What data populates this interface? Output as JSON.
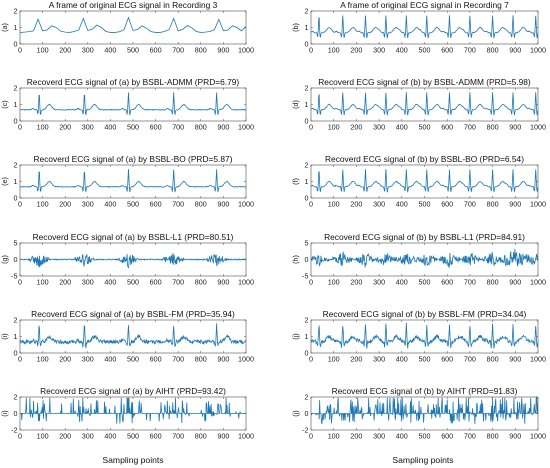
{
  "figure": {
    "xlabel": "Sampling points",
    "trace_color": "#1f77b4",
    "axis_color": "#4d4d4d"
  },
  "chart_data": [
    {
      "panel": "a",
      "type": "line",
      "title": "A frame of original ECG signal in Recording 3",
      "ylim": [
        0,
        2
      ],
      "yticks": [
        0,
        1,
        2
      ],
      "xlim": [
        0,
        1000
      ],
      "xticks": [
        0,
        100,
        200,
        300,
        400,
        500,
        600,
        700,
        800,
        900,
        1000
      ],
      "record": 3,
      "style": "ecg",
      "x": [
        0,
        20,
        40,
        60,
        80,
        100,
        120,
        140,
        160,
        180,
        200,
        220,
        240,
        260,
        280,
        300,
        320,
        340,
        360,
        380,
        400,
        420,
        440,
        460,
        480,
        500,
        520,
        540,
        560,
        580,
        600,
        620,
        640,
        660,
        680,
        700,
        720,
        740,
        760,
        780,
        800,
        820,
        840,
        860,
        880,
        900,
        920,
        940,
        960,
        980,
        1000
      ],
      "values": [
        0.7,
        0.72,
        0.75,
        0.8,
        1.5,
        0.8,
        0.85,
        1.1,
        1.0,
        0.78,
        0.72,
        0.7,
        0.76,
        0.85,
        1.55,
        0.82,
        0.9,
        1.15,
        1.0,
        0.76,
        0.7,
        0.7,
        0.74,
        0.86,
        1.6,
        0.82,
        0.88,
        1.1,
        0.95,
        0.75,
        0.7,
        0.7,
        0.76,
        0.88,
        1.55,
        0.8,
        0.88,
        1.12,
        0.98,
        0.76,
        0.7,
        0.72,
        0.76,
        0.86,
        1.5,
        0.8,
        0.85,
        1.1,
        1.0,
        0.8,
        1.05
      ]
    },
    {
      "panel": "b",
      "type": "line",
      "title": "A frame of original ECG signal in Recording 7",
      "ylim": [
        0,
        2
      ],
      "yticks": [
        0,
        1,
        2
      ],
      "xlim": [
        0,
        1000
      ],
      "xticks": [
        0,
        100,
        200,
        300,
        400,
        500,
        600,
        700,
        800,
        900,
        1000
      ],
      "record": 7,
      "style": "ecg"
    },
    {
      "panel": "c",
      "type": "line",
      "title": "Recoverd ECG signal of (a) by BSBL-ADMM (PRD=6.79)",
      "ylim": [
        0,
        2
      ],
      "yticks": [
        0,
        1,
        2
      ],
      "xlim": [
        0,
        1000
      ],
      "xticks": [
        0,
        100,
        200,
        300,
        400,
        500,
        600,
        700,
        800,
        900,
        1000
      ],
      "record": 3,
      "style": "ecg",
      "prd": 6.79
    },
    {
      "panel": "d",
      "type": "line",
      "title": "Recoverd ECG signal of (b) by BSBL-ADMM (PRD=5.98)",
      "ylim": [
        0,
        2
      ],
      "yticks": [
        0,
        1,
        2
      ],
      "xlim": [
        0,
        1000
      ],
      "xticks": [
        0,
        100,
        200,
        300,
        400,
        500,
        600,
        700,
        800,
        900,
        1000
      ],
      "record": 7,
      "style": "ecg",
      "prd": 5.98
    },
    {
      "panel": "e",
      "type": "line",
      "title": "Recoverd ECG signal of (a) by BSBL-BO (PRD=5.87)",
      "ylim": [
        0,
        2
      ],
      "yticks": [
        0,
        1,
        2
      ],
      "xlim": [
        0,
        1000
      ],
      "xticks": [
        0,
        100,
        200,
        300,
        400,
        500,
        600,
        700,
        800,
        900,
        1000
      ],
      "record": 3,
      "style": "ecg",
      "prd": 5.87
    },
    {
      "panel": "f",
      "type": "line",
      "title": "Recoverd ECG signal of (b) by BSBL-BO (PRD=6.54)",
      "ylim": [
        0,
        2
      ],
      "yticks": [
        0,
        1,
        2
      ],
      "xlim": [
        0,
        1000
      ],
      "xticks": [
        0,
        100,
        200,
        300,
        400,
        500,
        600,
        700,
        800,
        900,
        1000
      ],
      "record": 7,
      "style": "ecg",
      "prd": 6.54
    },
    {
      "panel": "g",
      "type": "line",
      "title": "Recoverd ECG signal of (a) by BSBL-L1 (PRD=80.51)",
      "ylim": [
        -5,
        5
      ],
      "yticks": [
        -5,
        0,
        5
      ],
      "xlim": [
        0,
        1000
      ],
      "xticks": [
        0,
        100,
        200,
        300,
        400,
        500,
        600,
        700,
        800,
        900,
        1000
      ],
      "record": 3,
      "style": "l1",
      "prd": 80.51
    },
    {
      "panel": "h",
      "type": "line",
      "title": "Recoverd ECG signal of (b) by BSBL-L1 (PRD=84.91)",
      "ylim": [
        -5,
        5
      ],
      "yticks": [
        -5,
        0,
        5
      ],
      "xlim": [
        0,
        1000
      ],
      "xticks": [
        0,
        100,
        200,
        300,
        400,
        500,
        600,
        700,
        800,
        900,
        1000
      ],
      "record": 7,
      "style": "l1",
      "prd": 84.91
    },
    {
      "panel": "i",
      "type": "line",
      "title": "Recoverd ECG signal of (a) by BSBL-FM (PRD=35.94)",
      "ylim": [
        0,
        2
      ],
      "yticks": [
        0,
        1,
        2
      ],
      "xlim": [
        0,
        1000
      ],
      "xticks": [
        0,
        100,
        200,
        300,
        400,
        500,
        600,
        700,
        800,
        900,
        1000
      ],
      "record": 3,
      "style": "fm",
      "prd": 35.94
    },
    {
      "panel": "j",
      "type": "line",
      "title": "Recoverd ECG signal of (b) by BSBL-FM (PRD=34.04)",
      "ylim": [
        0,
        2
      ],
      "yticks": [
        0,
        1,
        2
      ],
      "xlim": [
        0,
        1000
      ],
      "xticks": [
        0,
        100,
        200,
        300,
        400,
        500,
        600,
        700,
        800,
        900,
        1000
      ],
      "record": 7,
      "style": "fm",
      "prd": 34.04
    },
    {
      "panel": "k",
      "type": "line",
      "title": "Recoverd ECG signal of (a) by AIHT (PRD=93.42)",
      "ylim": [
        -2,
        2
      ],
      "yticks": [
        -2,
        0,
        2
      ],
      "xlim": [
        0,
        1000
      ],
      "xticks": [
        0,
        100,
        200,
        300,
        400,
        500,
        600,
        700,
        800,
        900,
        1000
      ],
      "record": 3,
      "style": "aiht",
      "prd": 93.42
    },
    {
      "panel": "l",
      "type": "line",
      "title": "Recoverd ECG signal of (b) by AIHT (PRD=91.83)",
      "ylim": [
        -2,
        2
      ],
      "yticks": [
        -2,
        0,
        2
      ],
      "xlim": [
        0,
        1000
      ],
      "xticks": [
        0,
        100,
        200,
        300,
        400,
        500,
        600,
        700,
        800,
        900,
        1000
      ],
      "record": 7,
      "style": "aiht",
      "prd": 91.83
    }
  ],
  "panel_letters": {
    "a": "(a)",
    "b": "(b)",
    "c": "(c)",
    "d": "(d)",
    "e": "(e)",
    "f": "(f)",
    "g": "(g)",
    "h": "(h)",
    "i": "(i)",
    "j": "(j)",
    "k": "(i)",
    "l": "(j)"
  },
  "beats": {
    "3": [
      85,
      285,
      480,
      680,
      870
    ],
    "7": [
      35,
      140,
      240,
      330,
      420,
      510,
      610,
      700,
      800,
      890,
      990
    ]
  }
}
